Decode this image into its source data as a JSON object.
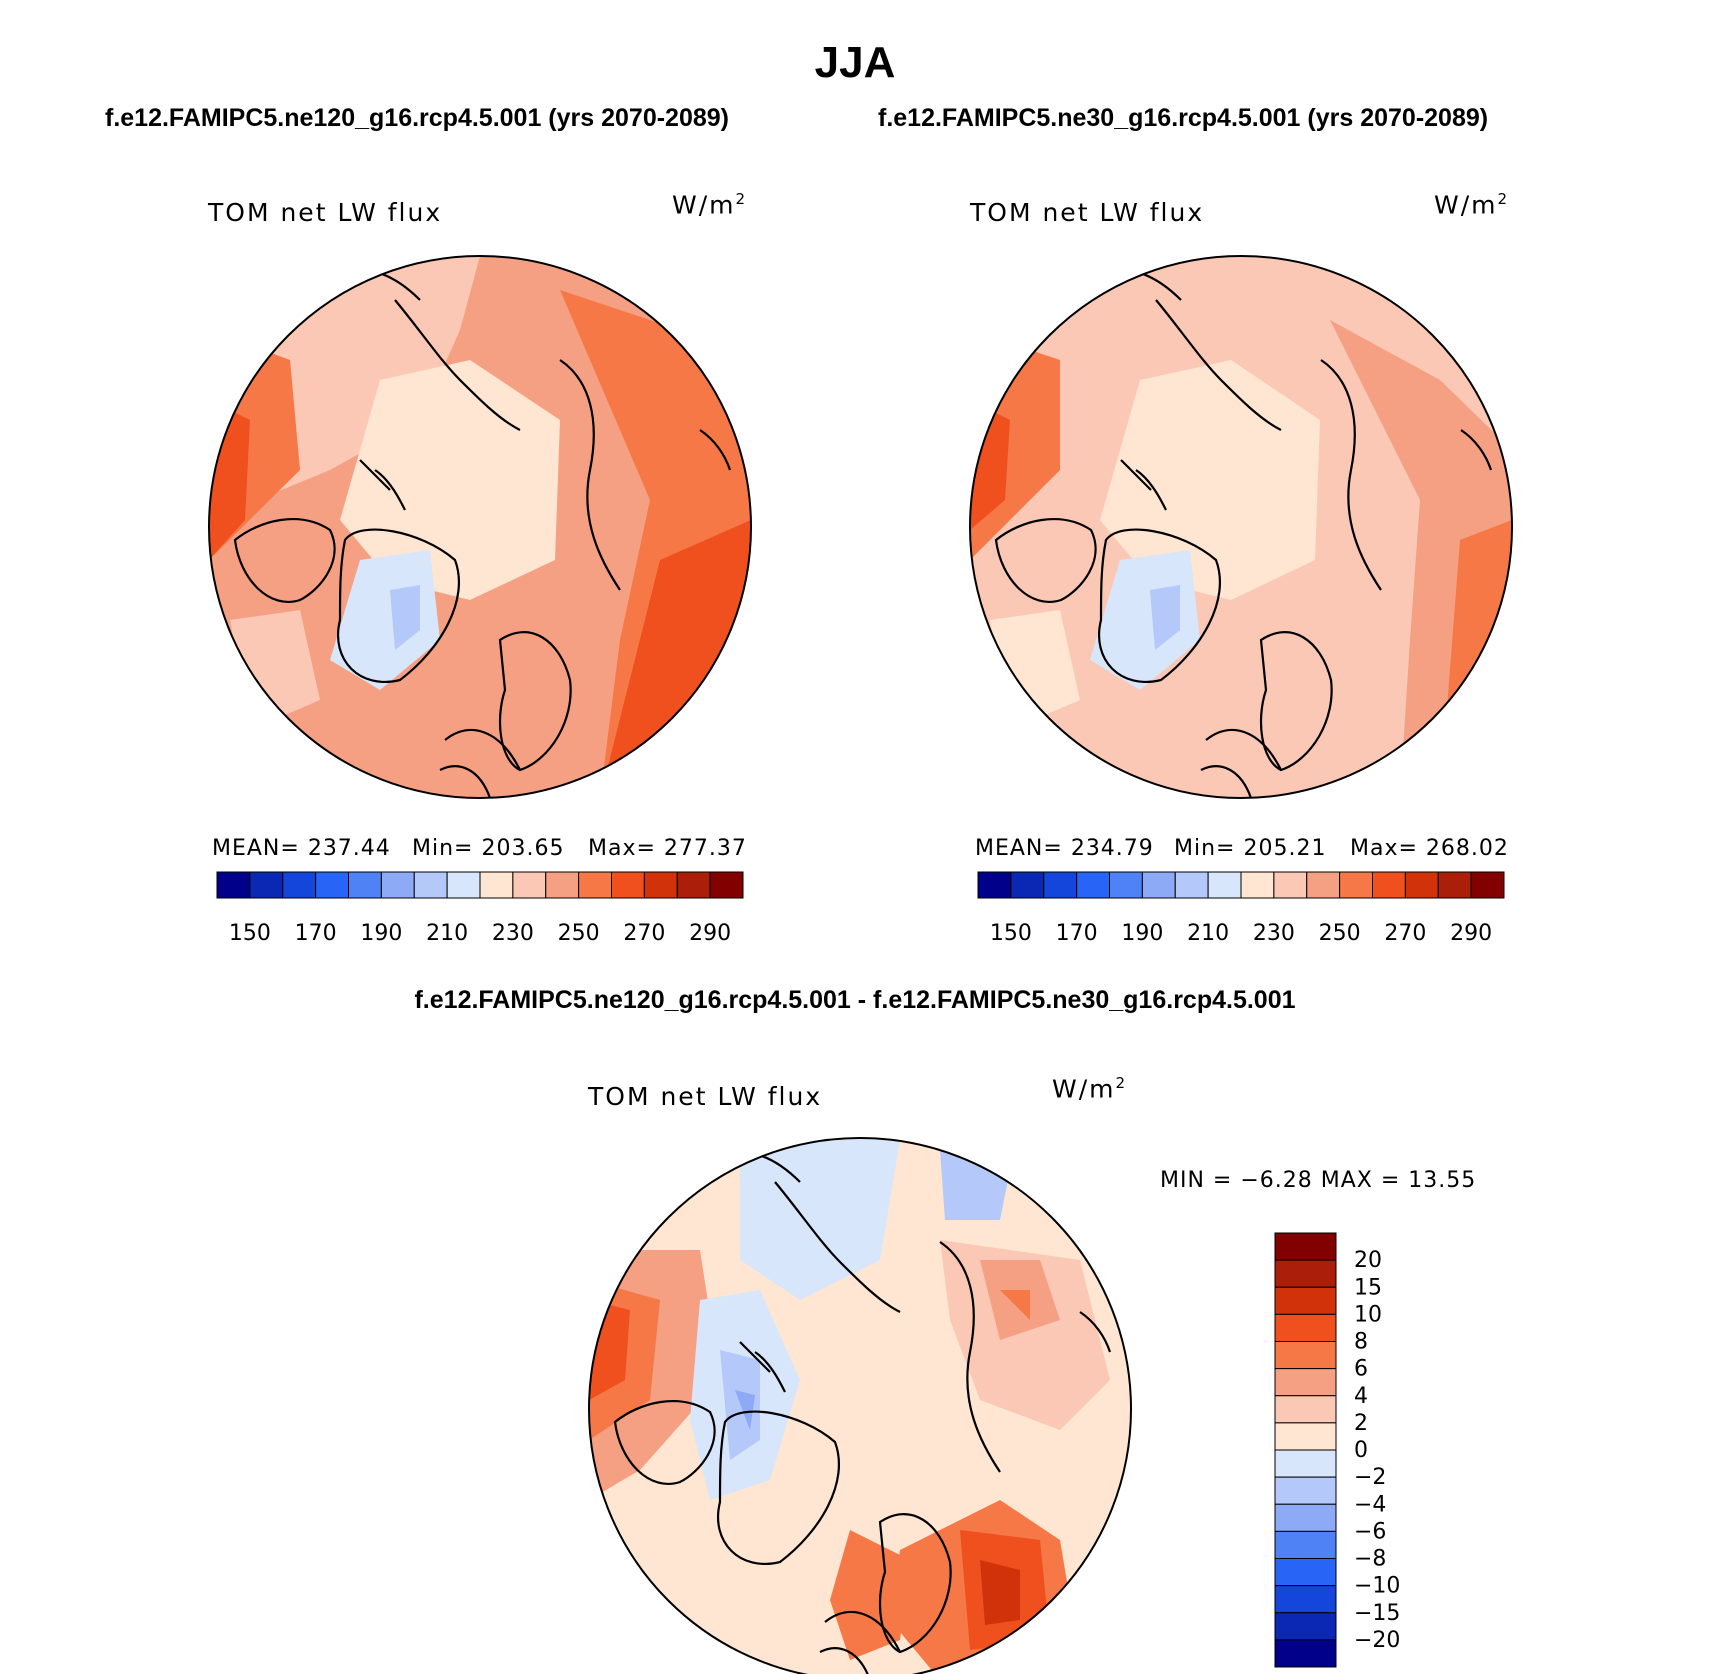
{
  "page": {
    "title": "JJA",
    "subtitle_left": "f.e12.FAMIPC5.ne120_g16.rcp4.5.001 (yrs 2070-2089)",
    "subtitle_right": "f.e12.FAMIPC5.ne30_g16.rcp4.5.001 (yrs 2070-2089)",
    "subtitle_diff": "f.e12.FAMIPC5.ne120_g16.rcp4.5.001 - f.e12.FAMIPC5.ne30_g16.rcp4.5.001"
  },
  "chart_data": [
    {
      "type": "heatmap",
      "projection": "north-polar-stereographic",
      "variable_label": "TOM net LW flux",
      "units": "W/m",
      "units_exp": "2",
      "stats": {
        "mean_label": "MEAN= 237.44",
        "min_label": "Min= 203.65",
        "max_label": "Max= 277.37"
      },
      "mean": 237.44,
      "min": 203.65,
      "max": 277.37,
      "colorbar": {
        "orientation": "horizontal",
        "tick_labels": [
          "150",
          "170",
          "190",
          "210",
          "230",
          "250",
          "270",
          "290"
        ],
        "colors": [
          "#00008b",
          "#0a28b4",
          "#1446dc",
          "#2864f5",
          "#4f82f5",
          "#8caaf5",
          "#b4c8fa",
          "#d7e6fa",
          "#ffe6d2",
          "#fac8b4",
          "#f5a082",
          "#f57846",
          "#f0501e",
          "#d2320a",
          "#aa1e0a",
          "#820000"
        ]
      }
    },
    {
      "type": "heatmap",
      "projection": "north-polar-stereographic",
      "variable_label": "TOM net LW flux",
      "units": "W/m",
      "units_exp": "2",
      "stats": {
        "mean_label": "MEAN= 234.79",
        "min_label": "Min= 205.21",
        "max_label": "Max= 268.02"
      },
      "mean": 234.79,
      "min": 205.21,
      "max": 268.02,
      "colorbar": {
        "orientation": "horizontal",
        "tick_labels": [
          "150",
          "170",
          "190",
          "210",
          "230",
          "250",
          "270",
          "290"
        ],
        "colors": [
          "#00008b",
          "#0a28b4",
          "#1446dc",
          "#2864f5",
          "#4f82f5",
          "#8caaf5",
          "#b4c8fa",
          "#d7e6fa",
          "#ffe6d2",
          "#fac8b4",
          "#f5a082",
          "#f57846",
          "#f0501e",
          "#d2320a",
          "#aa1e0a",
          "#820000"
        ]
      }
    },
    {
      "type": "heatmap",
      "projection": "north-polar-stereographic",
      "variable_label": "TOM net LW flux",
      "units": "W/m",
      "units_exp": "2",
      "stats": {
        "minmax_label": "MIN =   −6.28 MAX =   13.55"
      },
      "min": -6.28,
      "max": 13.55,
      "colorbar": {
        "orientation": "vertical",
        "tick_labels": [
          "20",
          "15",
          "10",
          "8",
          "6",
          "4",
          "2",
          "0",
          "−2",
          "−4",
          "−6",
          "−8",
          "−10",
          "−15",
          "−20"
        ],
        "colors": [
          "#820000",
          "#aa1e0a",
          "#d2320a",
          "#f0501e",
          "#f57846",
          "#f5a082",
          "#fac8b4",
          "#ffe6d2",
          "#d7e6fa",
          "#b4c8fa",
          "#8caaf5",
          "#4f82f5",
          "#2864f5",
          "#1446dc",
          "#0a28b4",
          "#00008b"
        ]
      }
    }
  ]
}
